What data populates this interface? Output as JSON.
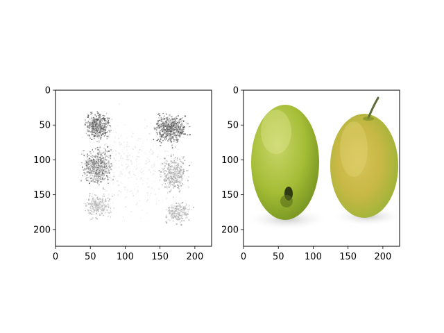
{
  "chart_data": [
    {
      "type": "heatmap",
      "content": "saliency map of two apples",
      "colormap": "grayscale (white background, dark speckles)",
      "xlim": [
        0,
        224
      ],
      "ylim": [
        224,
        0
      ],
      "x_ticks": [
        0,
        50,
        100,
        150,
        200
      ],
      "y_ticks": [
        0,
        50,
        100,
        150,
        200
      ],
      "title": "",
      "xlabel": "",
      "ylabel": ""
    },
    {
      "type": "image",
      "content": "photo of two green-yellow apples on white background",
      "xlim": [
        0,
        224
      ],
      "ylim": [
        224,
        0
      ],
      "x_ticks": [
        0,
        50,
        100,
        150,
        200
      ],
      "y_ticks": [
        0,
        50,
        100,
        150,
        200
      ],
      "title": "",
      "xlabel": "",
      "ylabel": ""
    }
  ],
  "colors": {
    "frame": "#000000",
    "background": "#ffffff",
    "apple_green": "#a9c23a",
    "apple_yellow": "#cfc14a",
    "speckle": "#222222"
  }
}
